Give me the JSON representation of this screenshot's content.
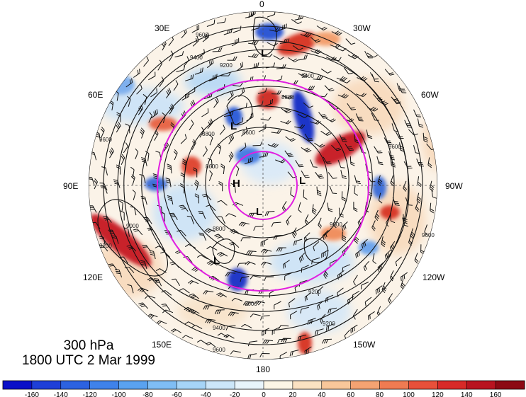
{
  "info": {
    "level": "300 hPa",
    "valid_time": "1800 UTC 2 Mar 1999"
  },
  "longitude_labels": [
    {
      "text": "0",
      "lon": 0
    },
    {
      "text": "30W",
      "lon": -30
    },
    {
      "text": "60W",
      "lon": -60
    },
    {
      "text": "90W",
      "lon": -90
    },
    {
      "text": "120W",
      "lon": -120
    },
    {
      "text": "150W",
      "lon": -150
    },
    {
      "text": "180",
      "lon": 180
    },
    {
      "text": "150E",
      "lon": 150
    },
    {
      "text": "120E",
      "lon": 120
    },
    {
      "text": "90E",
      "lon": 90
    },
    {
      "text": "60E",
      "lon": 60
    },
    {
      "text": "30E",
      "lon": 30
    }
  ],
  "contour_labels": [
    "9600",
    "9400",
    "9200",
    "8800",
    "8600",
    "8800",
    "8600",
    "9600",
    "9000",
    "9200",
    "9400",
    "9600",
    "9000",
    "9400",
    "9200",
    "9000",
    "8800",
    "9600",
    "9600",
    "9200"
  ],
  "pressure_systems": [
    {
      "label": "L",
      "type": "low"
    },
    {
      "label": "L",
      "type": "low"
    },
    {
      "label": "H",
      "type": "high"
    },
    {
      "label": "L",
      "type": "low"
    },
    {
      "label": "L",
      "type": "low"
    },
    {
      "label": "L",
      "type": "low"
    }
  ],
  "colorbar": {
    "tick_labels": [
      "-160",
      "-140",
      "-120",
      "-100",
      "-80",
      "-60",
      "-40",
      "-20",
      "0",
      "20",
      "40",
      "60",
      "80",
      "100",
      "120",
      "140",
      "160"
    ],
    "colors": [
      "#0a10c8",
      "#1e3fd8",
      "#2c62e0",
      "#3f82ea",
      "#5aa2f0",
      "#7fbdf4",
      "#a6d4f7",
      "#cce6f9",
      "#e8f4fb",
      "#fdf6e6",
      "#fbe2c2",
      "#f8c79a",
      "#f4a372",
      "#ef7b52",
      "#e8503a",
      "#d82a28",
      "#b81420",
      "#8c0a14"
    ]
  },
  "colors": {
    "zero_line": "#8b8b8b",
    "ring_color": "#e11ee1"
  }
}
